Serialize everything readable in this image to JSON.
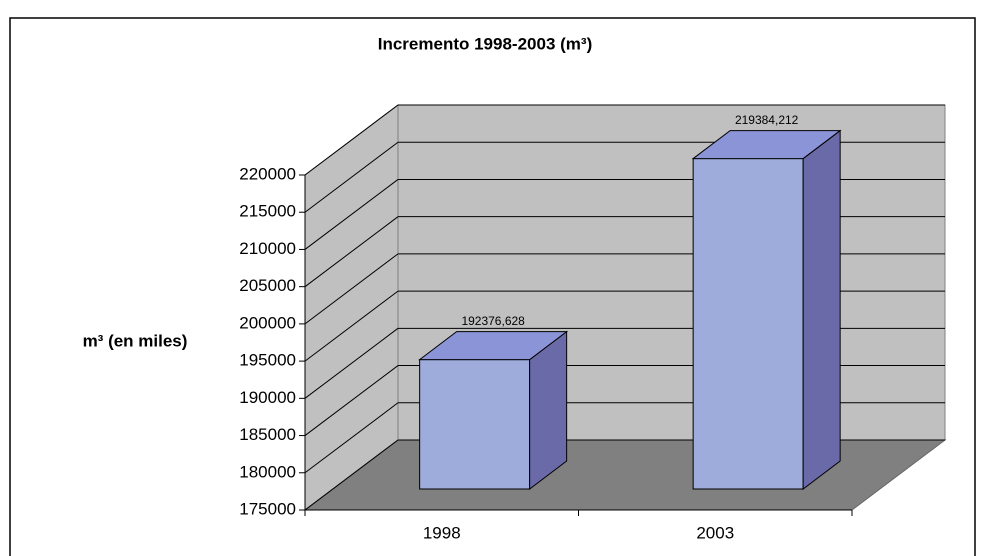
{
  "chart_data": {
    "type": "bar3d",
    "title": "Incremento 1998-2003 (m³)",
    "y_label": "m³ (en miles)",
    "categories": [
      "1998",
      "2003"
    ],
    "values": [
      192376.628,
      219384.212
    ],
    "value_labels": [
      "192376,628",
      "219384,212"
    ],
    "color": "#9dacdb",
    "ylim": [
      175000,
      220000
    ],
    "yticks": [
      175000,
      180000,
      185000,
      190000,
      195000,
      200000,
      205000,
      210000,
      215000,
      220000
    ],
    "grid": true
  }
}
